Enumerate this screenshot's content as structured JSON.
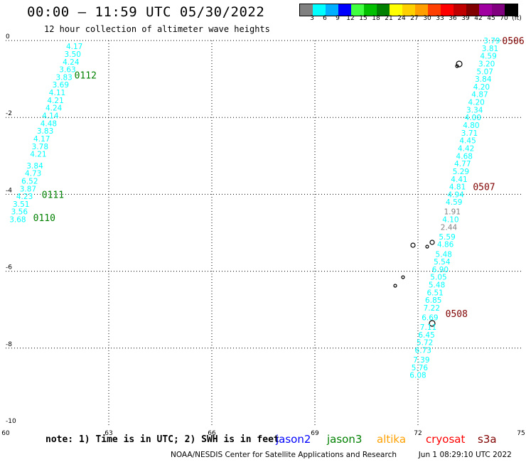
{
  "header": {
    "title": "00:00 — 11:59 UTC 05/30/2022",
    "subtitle": "12 hour collection of altimeter wave heights"
  },
  "color_scale": {
    "labels": [
      "3",
      "6",
      "9",
      "12",
      "15",
      "18",
      "21",
      "24",
      "27",
      "30",
      "33",
      "36",
      "39",
      "42",
      "45",
      "70",
      "(ft)"
    ],
    "colors": [
      "#808080",
      "#00ffff",
      "#00b0ff",
      "#0000ff",
      "#40ff40",
      "#00c000",
      "#008000",
      "#ffff00",
      "#ffd000",
      "#ffa000",
      "#ff4000",
      "#ff0000",
      "#c00000",
      "#800000",
      "#a000a0",
      "#800080",
      "#000000"
    ]
  },
  "axes": {
    "x_ticks": [
      "60",
      "63",
      "66",
      "69",
      "72",
      "75"
    ],
    "y_ticks": [
      "0",
      "-2",
      "-4",
      "-6",
      "-8",
      "-10"
    ],
    "xlim": [
      60,
      75
    ],
    "ylim": [
      -10,
      0.1
    ],
    "grid": "dotted"
  },
  "chart_data": {
    "type": "scatter",
    "pass_labels": [
      {
        "text": "0112",
        "lon": 62.0,
        "lat": -0.9,
        "color": "#008000"
      },
      {
        "text": "0111",
        "lon": 61.05,
        "lat": -4.0,
        "color": "#008000"
      },
      {
        "text": "0110",
        "lon": 60.8,
        "lat": -4.6,
        "color": "#008000"
      },
      {
        "text": "0506",
        "lon": 74.45,
        "lat": 0.0,
        "color": "#800000"
      },
      {
        "text": "0507",
        "lon": 73.6,
        "lat": -3.8,
        "color": "#800000"
      },
      {
        "text": "0508",
        "lon": 72.8,
        "lat": -7.1,
        "color": "#800000"
      }
    ],
    "series": [
      {
        "satellite": "jason3",
        "color": "#00ffff",
        "points": [
          {
            "lon": 62.0,
            "lat": -0.15,
            "v": "4.17"
          },
          {
            "lon": 61.95,
            "lat": -0.35,
            "v": "3.50"
          },
          {
            "lon": 61.9,
            "lat": -0.55,
            "v": "4.24"
          },
          {
            "lon": 61.8,
            "lat": -0.75,
            "v": "3.63"
          },
          {
            "lon": 61.7,
            "lat": -0.95,
            "v": "3.83"
          },
          {
            "lon": 61.6,
            "lat": -1.15,
            "v": "3.69"
          },
          {
            "lon": 61.5,
            "lat": -1.35,
            "v": "4.11"
          },
          {
            "lon": 61.45,
            "lat": -1.55,
            "v": "4.21"
          },
          {
            "lon": 61.4,
            "lat": -1.75,
            "v": "4.24"
          },
          {
            "lon": 61.3,
            "lat": -1.95,
            "v": "4.14"
          },
          {
            "lon": 61.25,
            "lat": -2.15,
            "v": "4.48"
          },
          {
            "lon": 61.15,
            "lat": -2.35,
            "v": "3.83"
          },
          {
            "lon": 61.05,
            "lat": -2.55,
            "v": "4.17"
          },
          {
            "lon": 61.0,
            "lat": -2.75,
            "v": "3.78"
          },
          {
            "lon": 60.95,
            "lat": -2.95,
            "v": "4.21"
          },
          {
            "lon": 60.85,
            "lat": -3.25,
            "v": "3.84"
          },
          {
            "lon": 60.8,
            "lat": -3.45,
            "v": "4.73"
          },
          {
            "lon": 60.7,
            "lat": -3.65,
            "v": "6.52"
          },
          {
            "lon": 60.65,
            "lat": -3.85,
            "v": "3.87"
          },
          {
            "lon": 60.55,
            "lat": -4.05,
            "v": "4.23"
          },
          {
            "lon": 60.45,
            "lat": -4.25,
            "v": "3.51"
          },
          {
            "lon": 60.4,
            "lat": -4.45,
            "v": "3.56"
          },
          {
            "lon": 60.35,
            "lat": -4.65,
            "v": "3.68"
          }
        ]
      },
      {
        "satellite": "s3a",
        "color": "#00ffff",
        "points": [
          {
            "lon": 74.15,
            "lat": 0.0,
            "v": "3.79"
          },
          {
            "lon": 74.1,
            "lat": -0.2,
            "v": "3.81"
          },
          {
            "lon": 74.05,
            "lat": -0.4,
            "v": "4.59"
          },
          {
            "lon": 74.0,
            "lat": -0.6,
            "v": "3.20"
          },
          {
            "lon": 73.95,
            "lat": -0.8,
            "v": "5.07"
          },
          {
            "lon": 73.9,
            "lat": -1.0,
            "v": "3.84"
          },
          {
            "lon": 73.85,
            "lat": -1.2,
            "v": "4.20"
          },
          {
            "lon": 73.8,
            "lat": -1.4,
            "v": "4.87"
          },
          {
            "lon": 73.7,
            "lat": -1.6,
            "v": "4.20"
          },
          {
            "lon": 73.65,
            "lat": -1.8,
            "v": "3.34"
          },
          {
            "lon": 73.6,
            "lat": -2.0,
            "v": "4.00"
          },
          {
            "lon": 73.55,
            "lat": -2.2,
            "v": "4.80"
          },
          {
            "lon": 73.5,
            "lat": -2.4,
            "v": "3.71"
          },
          {
            "lon": 73.45,
            "lat": -2.6,
            "v": "4.45"
          },
          {
            "lon": 73.4,
            "lat": -2.8,
            "v": "4.42"
          },
          {
            "lon": 73.35,
            "lat": -3.0,
            "v": "4.68"
          },
          {
            "lon": 73.3,
            "lat": -3.2,
            "v": "4.77"
          },
          {
            "lon": 73.25,
            "lat": -3.4,
            "v": "5.29"
          },
          {
            "lon": 73.2,
            "lat": -3.6,
            "v": "4.41"
          },
          {
            "lon": 73.15,
            "lat": -3.8,
            "v": "4.81"
          },
          {
            "lon": 73.1,
            "lat": -4.0,
            "v": "4.94"
          },
          {
            "lon": 73.05,
            "lat": -4.2,
            "v": "4.59"
          },
          {
            "lon": 73.0,
            "lat": -4.45,
            "v": "1.91",
            "color": "#808080"
          },
          {
            "lon": 72.95,
            "lat": -4.65,
            "v": "4.10"
          },
          {
            "lon": 72.9,
            "lat": -4.85,
            "v": "2.44",
            "color": "#808080"
          },
          {
            "lon": 72.85,
            "lat": -5.1,
            "v": "5.59"
          },
          {
            "lon": 72.8,
            "lat": -5.3,
            "v": "4.86"
          },
          {
            "lon": 72.75,
            "lat": -5.55,
            "v": "5.48"
          },
          {
            "lon": 72.7,
            "lat": -5.75,
            "v": "5.54"
          },
          {
            "lon": 72.65,
            "lat": -5.95,
            "v": "6.90"
          },
          {
            "lon": 72.6,
            "lat": -6.15,
            "v": "5.05"
          },
          {
            "lon": 72.55,
            "lat": -6.35,
            "v": "5.48"
          },
          {
            "lon": 72.5,
            "lat": -6.55,
            "v": "6.51"
          },
          {
            "lon": 72.45,
            "lat": -6.75,
            "v": "6.85"
          },
          {
            "lon": 72.4,
            "lat": -6.95,
            "v": "7.22"
          },
          {
            "lon": 72.35,
            "lat": -7.2,
            "v": "6.69"
          },
          {
            "lon": 72.3,
            "lat": -7.45,
            "v": "7.11"
          },
          {
            "lon": 72.25,
            "lat": -7.65,
            "v": "6.45"
          },
          {
            "lon": 72.2,
            "lat": -7.85,
            "v": "5.72"
          },
          {
            "lon": 72.15,
            "lat": -8.05,
            "v": "6.73"
          },
          {
            "lon": 72.1,
            "lat": -8.3,
            "v": "7.39"
          },
          {
            "lon": 72.05,
            "lat": -8.5,
            "v": "5.76"
          },
          {
            "lon": 72.0,
            "lat": -8.7,
            "v": "6.08"
          }
        ]
      }
    ]
  },
  "legend": {
    "note": "note: 1) Time is in UTC; 2) SWH is in feet",
    "satellites": [
      {
        "name": "jason2",
        "color": "#0000ff"
      },
      {
        "name": "jason3",
        "color": "#008000"
      },
      {
        "name": "altika",
        "color": "#ffa000"
      },
      {
        "name": "cryosat",
        "color": "#ff0000"
      },
      {
        "name": "s3a",
        "color": "#800000"
      }
    ]
  },
  "footer": {
    "credit": "NOAA/NESDIS Center for Satellite Applications and Research",
    "timestamp": "Jun  1 08:29:10 UTC 2022"
  }
}
